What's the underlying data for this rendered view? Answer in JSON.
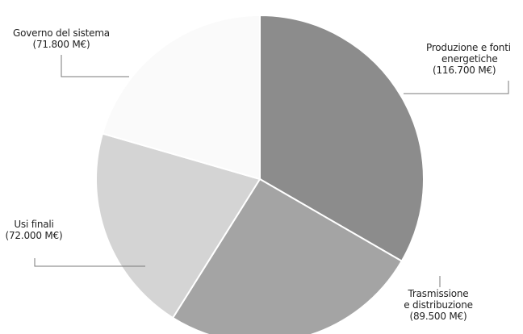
{
  "chart_data": {
    "type": "pie",
    "unit": "M€",
    "slices": [
      {
        "label": "Produzione e fonti energetiche",
        "value": 116700,
        "color": "#8c8c8c",
        "label_lines": [
          "Produzione e fonti",
          "energetiche",
          "(116.700 M€)"
        ]
      },
      {
        "label": "Trasmissione e distribuzione",
        "value": 89500,
        "color": "#a4a4a4",
        "label_lines": [
          "Trasmissione",
          "e distribuzione",
          "(89.500 M€)"
        ]
      },
      {
        "label": "Usi finali",
        "value": 72000,
        "color": "#d4d4d4",
        "label_lines": [
          "Usi finali",
          "(72.000 M€)"
        ]
      },
      {
        "label": "Governo del sistema",
        "value": 71800,
        "color": "#fafafa",
        "label_lines": [
          "Governo del sistema",
          "(71.800 M€)"
        ]
      }
    ],
    "start_angle_deg": 0,
    "direction": "clockwise"
  }
}
